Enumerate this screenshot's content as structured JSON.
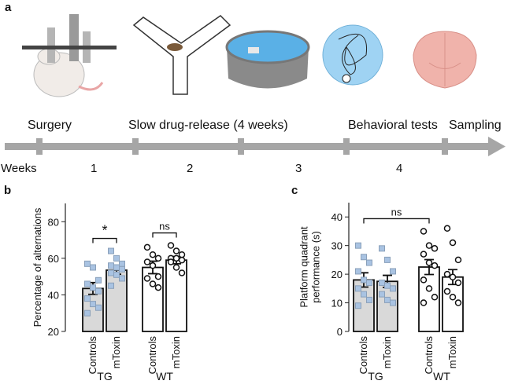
{
  "timeline": {
    "panel": "a",
    "stages": [
      "Surgery",
      "Slow drug-release (4 weeks)",
      "Behavioral tests",
      "Sampling"
    ],
    "axis_label": "Weeks",
    "weeks": [
      "1",
      "2",
      "3",
      "4"
    ]
  },
  "chart_data": [
    {
      "type": "bar",
      "panel": "b",
      "ylabel": [
        "Percentage of alternations"
      ],
      "categories": [
        "Controls",
        "mToxin",
        "Controls",
        "mToxin"
      ],
      "groups": [
        "TG",
        "WT"
      ],
      "values": [
        43.5,
        53.5,
        55,
        59
      ],
      "errors": [
        3.2,
        2.2,
        3.4,
        2
      ],
      "colors": [
        "#d9d9d9",
        "#d9d9d9",
        "#ffffff",
        "#ffffff"
      ],
      "points": [
        [
          57,
          55,
          48,
          46,
          44,
          42,
          38,
          35,
          33,
          30
        ],
        [
          64,
          60,
          57,
          56,
          55,
          54,
          52,
          51,
          49,
          45
        ],
        [
          66,
          62,
          60,
          58,
          56,
          50,
          49,
          46,
          44
        ],
        [
          67,
          64,
          62,
          60,
          60,
          59,
          58,
          55,
          52
        ]
      ],
      "point_styles": [
        "square",
        "square",
        "circle",
        "circle"
      ],
      "annotations": [
        {
          "text": "*",
          "between": [
            0,
            1
          ]
        },
        {
          "text": "ns",
          "between": [
            2,
            3
          ]
        }
      ],
      "ylim": [
        20,
        90
      ],
      "yticks": [
        20,
        40,
        60,
        80
      ]
    },
    {
      "type": "bar",
      "panel": "c",
      "ylabel": [
        "Platform quadrant",
        "performance (s)"
      ],
      "categories": [
        "Controls",
        "mToxin",
        "Controls",
        "mToxin"
      ],
      "groups": [
        "TG",
        "WT"
      ],
      "values": [
        18,
        17.5,
        22.5,
        19
      ],
      "errors": [
        2.5,
        2.1,
        2.6,
        2.6
      ],
      "colors": [
        "#d9d9d9",
        "#d9d9d9",
        "#ffffff",
        "#ffffff"
      ],
      "points": [
        [
          30,
          26,
          24,
          21,
          18,
          17,
          15,
          13,
          11,
          9
        ],
        [
          29,
          25,
          21,
          17,
          16,
          15,
          13,
          11,
          10
        ],
        [
          35,
          30,
          29,
          27,
          24,
          23,
          18,
          15,
          12,
          10
        ],
        [
          36,
          31,
          25,
          20,
          19,
          17,
          14,
          12,
          10
        ]
      ],
      "point_styles": [
        "square",
        "square",
        "circle",
        "circle"
      ],
      "annotations": [
        {
          "text": "ns",
          "between": [
            0,
            2
          ]
        }
      ],
      "ylim": [
        0,
        45
      ],
      "yticks": [
        0,
        10,
        20,
        30,
        40
      ]
    }
  ]
}
